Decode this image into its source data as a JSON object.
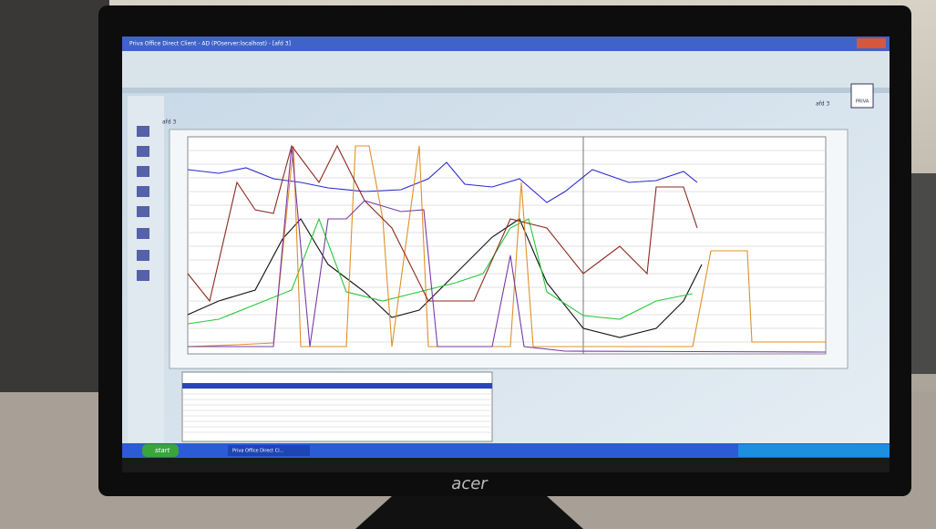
{
  "window": {
    "title": "Priva Office Direct Client - AD (POserver:localhost) - [afd 3]"
  },
  "document": {
    "tab": "afd 3",
    "nav": "afd 3",
    "brand": "PRIVA"
  },
  "taskbar": {
    "start": "start",
    "task": "Priva Office Direct Cl..."
  },
  "monitor": {
    "logo": "acer"
  }
}
